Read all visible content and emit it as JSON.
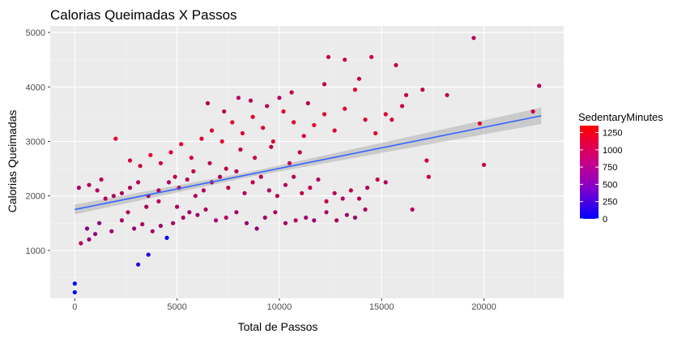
{
  "chart_data": {
    "type": "scatter",
    "title": "Calorias Queimadas X Passos",
    "xlabel": "Total de Passos",
    "ylabel": "Calorias Queimadas",
    "xlim": [
      -1200,
      23900
    ],
    "ylim": [
      120,
      5120
    ],
    "x_ticks": [
      0,
      5000,
      10000,
      15000,
      20000
    ],
    "x_tick_labels": [
      "0",
      "5000",
      "10000",
      "15000",
      "20000"
    ],
    "y_ticks": [
      1000,
      2000,
      3000,
      4000,
      5000
    ],
    "y_tick_labels": [
      "1000",
      "2000",
      "3000",
      "4000",
      "5000"
    ],
    "grid": true,
    "legend": {
      "title": "SedentaryMinutes",
      "position": "right",
      "breaks": [
        0,
        250,
        500,
        750,
        1000,
        1250
      ],
      "break_labels": [
        "0",
        "250",
        "500",
        "750",
        "1000",
        "1250"
      ],
      "range": [
        0,
        1350
      ],
      "low_color": "#0000FF",
      "high_color": "#FF0000"
    },
    "trend_line": {
      "x": [
        0,
        22800
      ],
      "y": [
        1750,
        3470
      ],
      "band_low_start": 1660,
      "band_high_start": 1840,
      "band_low_end": 3320,
      "band_high_end": 3620,
      "band_mid_x": 8500,
      "band_mid_half": 45,
      "color": "#3366FF"
    },
    "series": [
      {
        "points": [
          [
            0,
            230,
            0
          ],
          [
            0,
            390,
            0
          ],
          [
            4500,
            1230,
            30
          ],
          [
            3600,
            920,
            150
          ],
          [
            3100,
            740,
            200
          ],
          [
            300,
            1130,
            700
          ],
          [
            700,
            1200,
            600
          ],
          [
            1000,
            1300,
            550
          ],
          [
            600,
            1400,
            500
          ],
          [
            1200,
            1500,
            580
          ],
          [
            1800,
            1350,
            620
          ],
          [
            2300,
            1550,
            650
          ],
          [
            2900,
            1400,
            600
          ],
          [
            3300,
            1480,
            700
          ],
          [
            3800,
            1350,
            650
          ],
          [
            4200,
            1450,
            620
          ],
          [
            4800,
            1500,
            700
          ],
          [
            5300,
            1600,
            650
          ],
          [
            2600,
            1700,
            700
          ],
          [
            3500,
            1800,
            680
          ],
          [
            4100,
            1900,
            720
          ],
          [
            5000,
            1800,
            700
          ],
          [
            5600,
            1700,
            650
          ],
          [
            6000,
            1650,
            600
          ],
          [
            6400,
            1750,
            680
          ],
          [
            6900,
            1550,
            620
          ],
          [
            7400,
            1600,
            700
          ],
          [
            7900,
            1700,
            650
          ],
          [
            8400,
            1500,
            600
          ],
          [
            8900,
            1400,
            550
          ],
          [
            9300,
            1600,
            640
          ],
          [
            9800,
            1700,
            680
          ],
          [
            10300,
            1500,
            650
          ],
          [
            10800,
            1550,
            700
          ],
          [
            11300,
            1600,
            620
          ],
          [
            11700,
            1550,
            600
          ],
          [
            12300,
            1700,
            650
          ],
          [
            12800,
            1550,
            680
          ],
          [
            13300,
            1650,
            620
          ],
          [
            13700,
            1600,
            640
          ],
          [
            14200,
            1750,
            680
          ],
          [
            16500,
            1750,
            700
          ],
          [
            200,
            2150,
            650
          ],
          [
            700,
            2200,
            680
          ],
          [
            1100,
            2100,
            700
          ],
          [
            1500,
            1950,
            720
          ],
          [
            1900,
            2000,
            700
          ],
          [
            2300,
            2050,
            680
          ],
          [
            2700,
            2150,
            720
          ],
          [
            3100,
            2250,
            700
          ],
          [
            3600,
            2000,
            680
          ],
          [
            4100,
            2100,
            720
          ],
          [
            4600,
            2250,
            700
          ],
          [
            5100,
            2150,
            740
          ],
          [
            5500,
            2300,
            720
          ],
          [
            5900,
            2000,
            680
          ],
          [
            6300,
            2100,
            700
          ],
          [
            6700,
            2250,
            720
          ],
          [
            7100,
            2350,
            700
          ],
          [
            7500,
            2150,
            740
          ],
          [
            7900,
            2450,
            720
          ],
          [
            8300,
            2050,
            700
          ],
          [
            8700,
            2250,
            740
          ],
          [
            9100,
            2350,
            720
          ],
          [
            9500,
            2100,
            700
          ],
          [
            9900,
            2000,
            740
          ],
          [
            10300,
            2200,
            720
          ],
          [
            10700,
            2350,
            700
          ],
          [
            11100,
            2050,
            740
          ],
          [
            11500,
            2150,
            720
          ],
          [
            11900,
            2300,
            700
          ],
          [
            12300,
            1900,
            740
          ],
          [
            12700,
            2050,
            720
          ],
          [
            13100,
            1950,
            700
          ],
          [
            13500,
            2100,
            740
          ],
          [
            13900,
            1950,
            720
          ],
          [
            14300,
            2150,
            700
          ],
          [
            14800,
            2300,
            740
          ],
          [
            15200,
            2250,
            720
          ],
          [
            2000,
            3050,
            900
          ],
          [
            2700,
            2650,
            850
          ],
          [
            3200,
            2550,
            800
          ],
          [
            3700,
            2750,
            880
          ],
          [
            4200,
            2600,
            820
          ],
          [
            4700,
            2800,
            860
          ],
          [
            5200,
            2950,
            900
          ],
          [
            5700,
            2700,
            840
          ],
          [
            6200,
            3050,
            880
          ],
          [
            6700,
            3200,
            860
          ],
          [
            7200,
            3000,
            900
          ],
          [
            7700,
            3350,
            880
          ],
          [
            8200,
            3150,
            860
          ],
          [
            8700,
            3450,
            900
          ],
          [
            9200,
            3250,
            880
          ],
          [
            9700,
            3000,
            860
          ],
          [
            10200,
            3550,
            900
          ],
          [
            10700,
            3350,
            880
          ],
          [
            11200,
            3100,
            860
          ],
          [
            11700,
            3300,
            900
          ],
          [
            12200,
            3500,
            880
          ],
          [
            12700,
            3200,
            860
          ],
          [
            13200,
            3600,
            900
          ],
          [
            13700,
            3950,
            880
          ],
          [
            14200,
            3400,
            860
          ],
          [
            14700,
            3150,
            900
          ],
          [
            15200,
            3500,
            880
          ],
          [
            6500,
            3700,
            700
          ],
          [
            7300,
            3550,
            720
          ],
          [
            8000,
            3800,
            700
          ],
          [
            8600,
            3750,
            740
          ],
          [
            9400,
            3650,
            720
          ],
          [
            10000,
            3800,
            700
          ],
          [
            10600,
            3900,
            740
          ],
          [
            11400,
            3700,
            720
          ],
          [
            12200,
            4050,
            760
          ],
          [
            12400,
            4550,
            800
          ],
          [
            13200,
            4500,
            780
          ],
          [
            13900,
            4150,
            760
          ],
          [
            14500,
            4550,
            800
          ],
          [
            15700,
            4400,
            780
          ],
          [
            16200,
            3850,
            760
          ],
          [
            17000,
            3950,
            740
          ],
          [
            18200,
            3850,
            760
          ],
          [
            19500,
            4900,
            700
          ],
          [
            22700,
            4020,
            720
          ],
          [
            22400,
            3550,
            800
          ],
          [
            19800,
            3330,
            850
          ],
          [
            20000,
            2570,
            780
          ],
          [
            17200,
            2650,
            800
          ],
          [
            17300,
            2350,
            780
          ],
          [
            15500,
            3400,
            820
          ],
          [
            16000,
            3650,
            800
          ],
          [
            11000,
            2800,
            740
          ],
          [
            10500,
            2600,
            760
          ],
          [
            9600,
            2900,
            740
          ],
          [
            8800,
            2700,
            760
          ],
          [
            8100,
            2850,
            740
          ],
          [
            7400,
            2500,
            760
          ],
          [
            6600,
            2600,
            740
          ],
          [
            5800,
            2450,
            760
          ],
          [
            4900,
            2350,
            740
          ],
          [
            1300,
            2300,
            720
          ]
        ]
      }
    ]
  }
}
